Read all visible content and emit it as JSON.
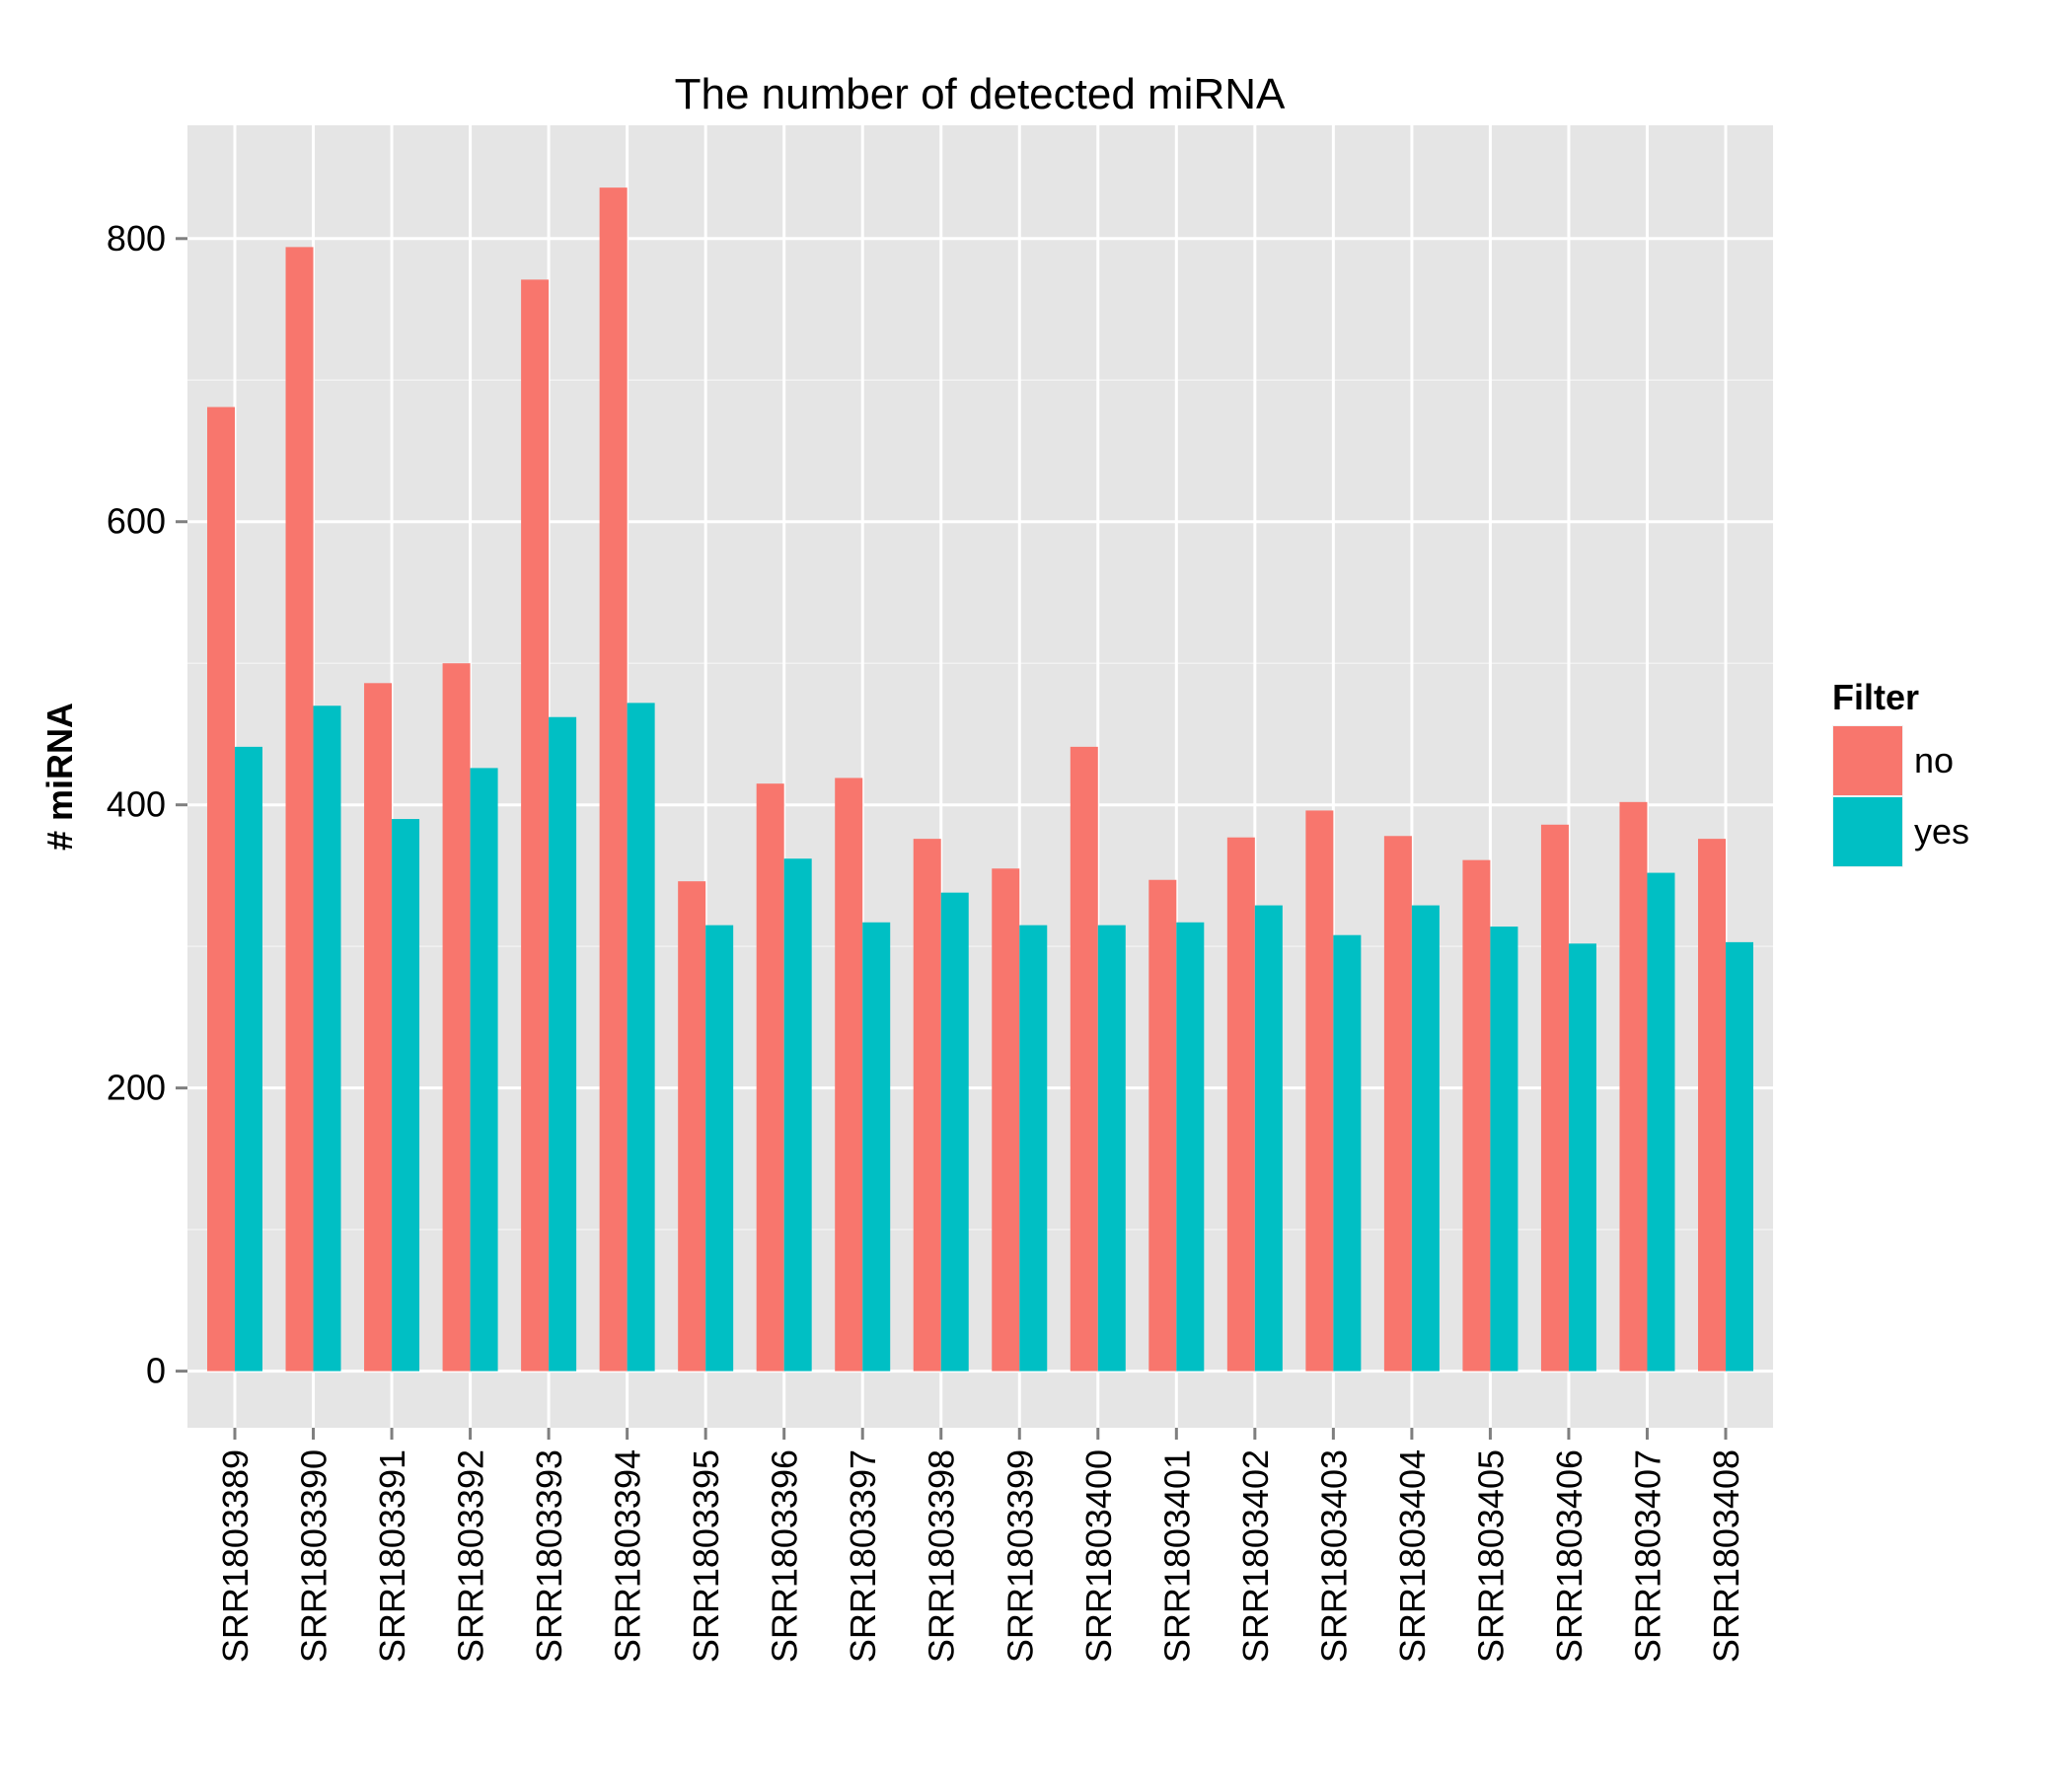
{
  "chart_data": {
    "type": "bar",
    "title": "The number of detected miRNA",
    "xlabel": "",
    "ylabel": "# miRNA",
    "ylim": [
      -40,
      880
    ],
    "yticks": [
      0,
      200,
      400,
      600,
      800
    ],
    "grid": true,
    "legend": {
      "title": "Filter",
      "position": "right"
    },
    "categories": [
      "SRR1803389",
      "SRR1803390",
      "SRR1803391",
      "SRR1803392",
      "SRR1803393",
      "SRR1803394",
      "SRR1803395",
      "SRR1803396",
      "SRR1803397",
      "SRR1803398",
      "SRR1803399",
      "SRR1803400",
      "SRR1803401",
      "SRR1803402",
      "SRR1803403",
      "SRR1803404",
      "SRR1803405",
      "SRR1803406",
      "SRR1803407",
      "SRR1803408"
    ],
    "series": [
      {
        "name": "no",
        "color": "#F8766D",
        "values": [
          681,
          794,
          486,
          500,
          771,
          836,
          346,
          415,
          419,
          376,
          355,
          441,
          347,
          377,
          396,
          378,
          361,
          386,
          402,
          376
        ]
      },
      {
        "name": "yes",
        "color": "#00BFC4",
        "values": [
          441,
          470,
          390,
          426,
          462,
          472,
          315,
          362,
          317,
          338,
          315,
          315,
          317,
          329,
          308,
          329,
          314,
          302,
          352,
          303
        ]
      }
    ]
  }
}
